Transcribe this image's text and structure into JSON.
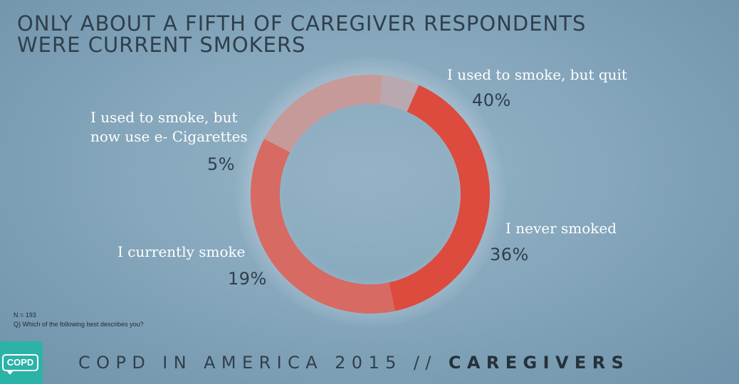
{
  "title": {
    "line1": "ONLY ABOUT A FIFTH OF CAREGIVER RESPONDENTS",
    "line2": "WERE CURRENT SMOKERS"
  },
  "chart_data": {
    "type": "pie",
    "variant": "donut",
    "start_angle_deg": -66,
    "direction": "clockwise",
    "slices": [
      {
        "label": "I used to smoke, but quit",
        "value": 40,
        "display": "40%",
        "color": "#dd4a3e"
      },
      {
        "label": "I never smoked",
        "value": 36,
        "display": "36%",
        "color": "#d76a63"
      },
      {
        "label": "I currently smoke",
        "value": 19,
        "display": "19%",
        "color": "#c79a9a"
      },
      {
        "label_lines": [
          "I used to smoke, but",
          "now use e- Cigarettes"
        ],
        "value": 5,
        "display": "5%",
        "color": "#b9a8b0"
      }
    ]
  },
  "notes": {
    "n": "N = 193",
    "question": "Q) Which of the following best describes you?"
  },
  "footer": {
    "text": "COPD IN AMERICA 2015 //",
    "bold": "CAREGIVERS"
  },
  "logo": {
    "text": "COPD",
    "color": "#2bb3a8"
  }
}
